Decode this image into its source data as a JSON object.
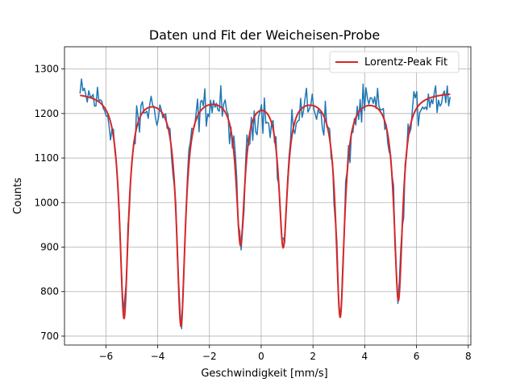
{
  "chart_data": {
    "type": "line",
    "title": "Daten und Fit der Weicheisen-Probe",
    "xlabel": "Geschwindigkeit [mm/s]",
    "ylabel": "Counts",
    "xlim": [
      -7.6,
      8.1
    ],
    "ylim": [
      680,
      1350
    ],
    "xticks": [
      -6,
      -4,
      -2,
      0,
      2,
      4,
      6,
      8
    ],
    "yticks": [
      700,
      800,
      900,
      1000,
      1100,
      1200,
      1300
    ],
    "grid": true,
    "legend_position": "top-right",
    "series": [
      {
        "role": "data",
        "color": "#1f77b4",
        "x_range": [
          -7.0,
          7.3
        ],
        "n_points": 256,
        "noise_amplitude": 40
      },
      {
        "role": "fit",
        "name": "Lorentz-Peak Fit",
        "color": "#d62728",
        "x_range": [
          -7.0,
          7.3
        ],
        "model": {
          "type": "sum_of_lorentzians",
          "baseline": 1250,
          "gamma": 0.2,
          "peaks": [
            {
              "center": -5.3,
              "depth": 505
            },
            {
              "center": -3.1,
              "depth": 520
            },
            {
              "center": -0.8,
              "depth": 335
            },
            {
              "center": 0.85,
              "depth": 340
            },
            {
              "center": 3.05,
              "depth": 500
            },
            {
              "center": 5.3,
              "depth": 465
            }
          ]
        }
      }
    ]
  }
}
